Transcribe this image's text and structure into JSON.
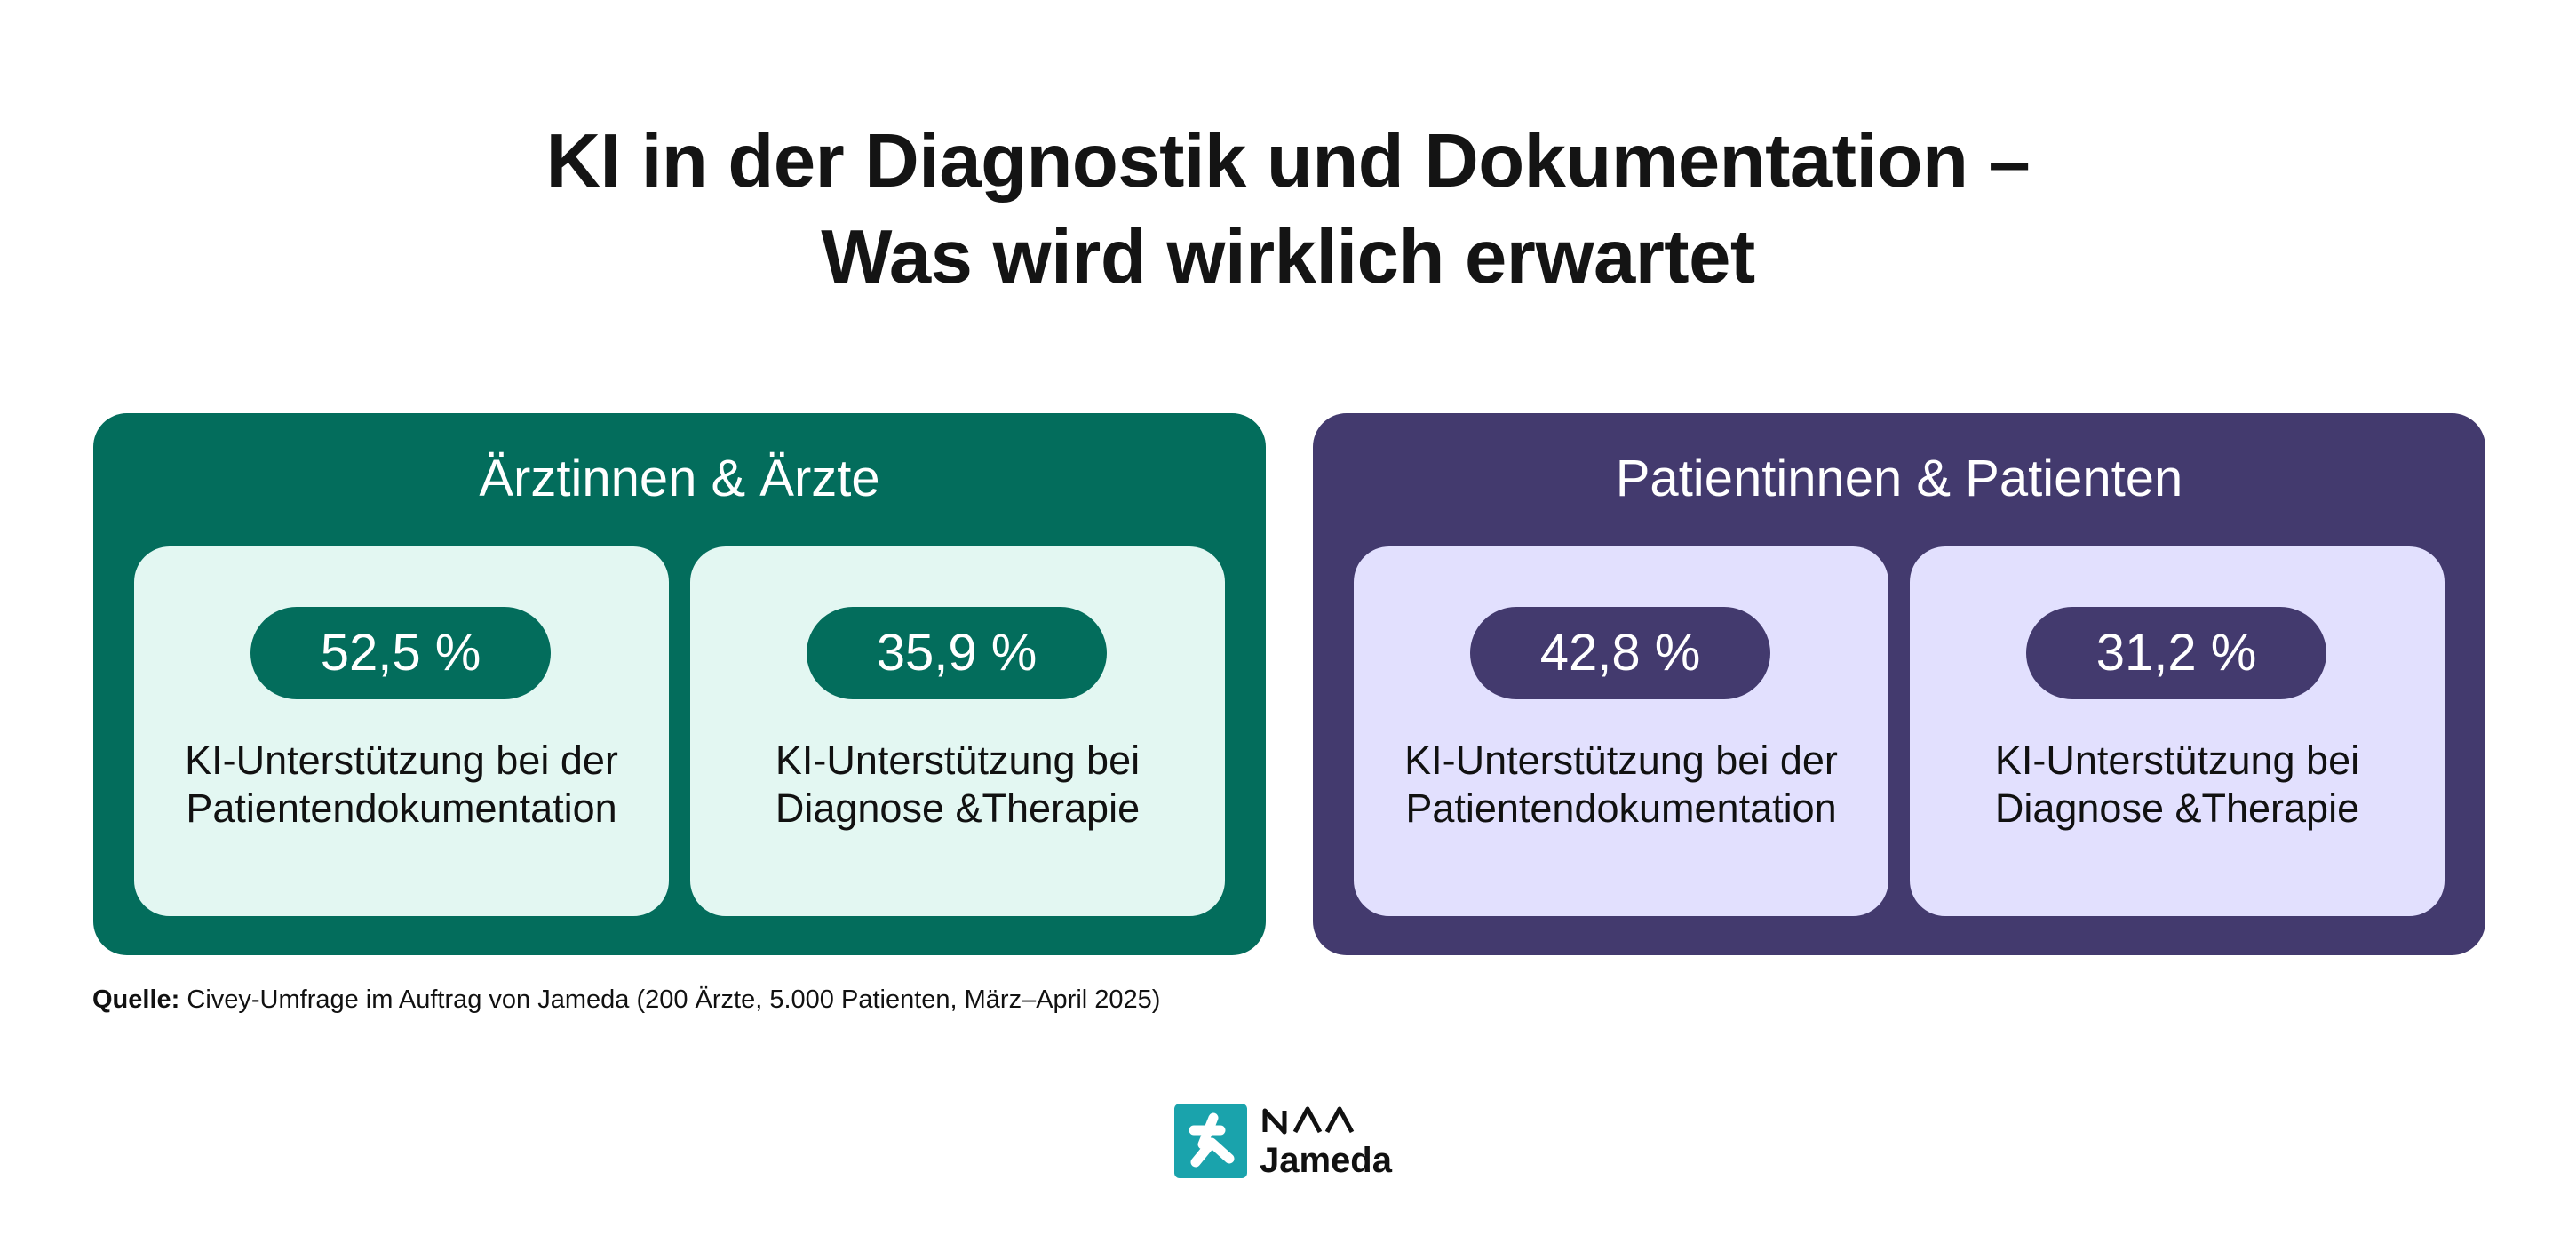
{
  "title": {
    "line1": "KI in der Diagnostik und Dokumentation –",
    "line2": "Was wird wirklich erwartet"
  },
  "chart_data": [
    {
      "type": "table",
      "title": "Ärztinnen & Ärzte",
      "unit": "%",
      "categories": [
        "KI-Unterstützung bei der Patientendokumentation",
        "KI-Unterstützung bei Diagnose &Therapie"
      ],
      "values": [
        52.5,
        35.9
      ],
      "value_labels": [
        "52,5 %",
        "35,9 %"
      ],
      "label_lines": [
        [
          "KI-Unterstützung bei der",
          "Patientendokumentation"
        ],
        [
          "KI-Unterstützung bei",
          "Diagnose &Therapie"
        ]
      ]
    },
    {
      "type": "table",
      "title": "Patientinnen & Patienten",
      "unit": "%",
      "categories": [
        "KI-Unterstützung bei der Patientendokumentation",
        "KI-Unterstützung bei Diagnose &Therapie"
      ],
      "values": [
        42.8,
        31.2
      ],
      "value_labels": [
        "42,8 %",
        "31,2 %"
      ],
      "label_lines": [
        [
          "KI-Unterstützung bei der",
          "Patientendokumentation"
        ],
        [
          "KI-Unterstützung bei",
          "Diagnose &Therapie"
        ]
      ]
    }
  ],
  "colors": {
    "doctors_panel": "#036d5c",
    "doctors_card": "#e3f7f2",
    "patients_panel": "#433a6e",
    "patients_card": "#e2e0fe",
    "logo_teal": "#1aa3ac"
  },
  "source": {
    "label": "Quelle:",
    "text": "Civey-Umfrage im Auftrag von Jameda (200 Ärzte, 5.000 Patienten, März–April 2025)"
  },
  "logo": {
    "icon": "jameda-cross-icon",
    "brand_mark": "NOA",
    "wordmark": "Jameda"
  }
}
